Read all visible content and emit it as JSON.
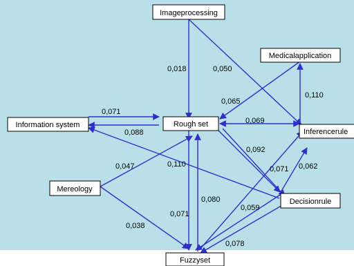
{
  "colors": {
    "background": "#b9e0e8",
    "arrow": "#3030c8",
    "node_fill": "#ffffff",
    "node_border": "#000000"
  },
  "nodes": {
    "image_processing": "Imageprocessing",
    "medical_application": "Medicalapplication",
    "information_system": "Information system",
    "rough_set": "Rough set",
    "inference_rule": "Inferencerule",
    "mereology": "Mereology",
    "decision_rule": "Decisionrule",
    "fuzzy_set": "Fuzzyset"
  },
  "edges": {
    "img_rough": "0,018",
    "img_inf": "0,050",
    "med_rough": "0,065",
    "med_inf": "0,110",
    "info_to_rough": "0,071",
    "rough_to_info": "0,088",
    "rough_inf": "0,069",
    "rough_dec": "0,092",
    "fuzzy_inf": "0,071",
    "dec_inf": "0,062",
    "mer_rough": "0,047",
    "rough_fuzzy": "0,110",
    "mer_fuzzy": "0,038",
    "fuzzy_rough": "0,071",
    "info_dec": "0,080",
    "dec_fuzzy_a": "0,059",
    "dec_fuzzy_b": "0,078"
  }
}
